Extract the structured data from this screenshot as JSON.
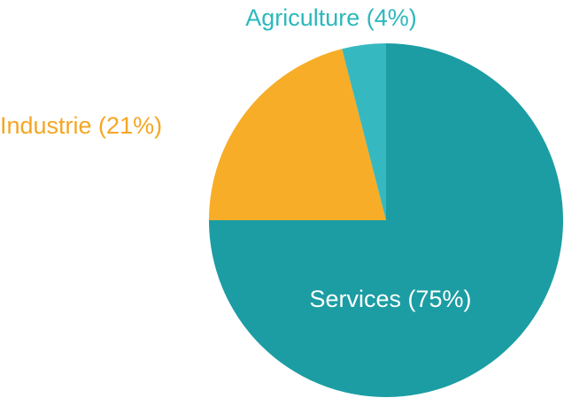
{
  "chart_data": {
    "type": "pie",
    "title": "",
    "slices": [
      {
        "label": "Services (75%)",
        "value": 75,
        "color": "#1b9da3",
        "label_color": "#ffffff"
      },
      {
        "label": "Industrie (21%)",
        "value": 21,
        "color": "#f7ad27",
        "label_color": "#f5a623"
      },
      {
        "label": "Agriculture (4%)",
        "value": 4,
        "color": "#36b8c0",
        "label_color": "#2cb8bd"
      }
    ],
    "start_angle_deg": 0,
    "direction": "clockwise",
    "legend": "none"
  }
}
